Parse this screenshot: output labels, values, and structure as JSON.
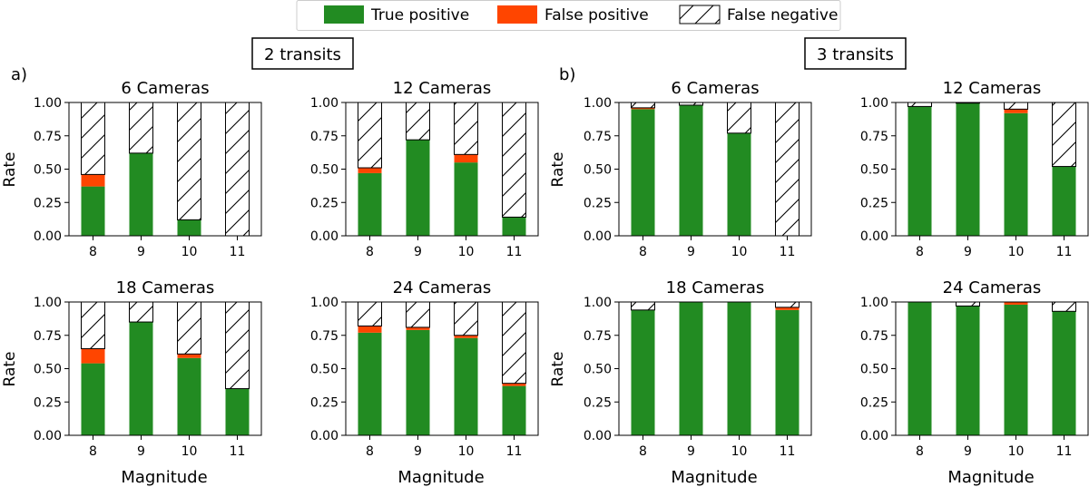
{
  "colors": {
    "tp": "#228b22",
    "fp": "#ff4500",
    "fn_fill": "#ffffff",
    "edge": "#000000"
  },
  "legend": {
    "tp_label": "True positive",
    "fp_label": "False positive",
    "fn_label": "False negative"
  },
  "groups": [
    {
      "title": "2 transits",
      "panel_label": "a)"
    },
    {
      "title": "3 transits",
      "panel_label": "b)"
    }
  ],
  "axis_text": {
    "ylabel": "Rate",
    "xlabel": "Magnitude"
  },
  "chart_data": [
    {
      "type": "bar",
      "stacked": true,
      "group": "2 transits",
      "title": "6 Cameras",
      "categories": [
        "8",
        "9",
        "10",
        "11"
      ],
      "ylim": [
        0,
        1.0
      ],
      "yticks": [
        "0.00",
        "0.25",
        "0.50",
        "0.75",
        "1.00"
      ],
      "series": [
        {
          "name": "True positive",
          "values": [
            0.37,
            0.62,
            0.12,
            0.0
          ]
        },
        {
          "name": "False positive",
          "values": [
            0.09,
            0.0,
            0.0,
            0.0
          ]
        },
        {
          "name": "False negative",
          "values": [
            0.54,
            0.38,
            0.88,
            1.0
          ]
        }
      ]
    },
    {
      "type": "bar",
      "stacked": true,
      "group": "2 transits",
      "title": "12 Cameras",
      "categories": [
        "8",
        "9",
        "10",
        "11"
      ],
      "ylim": [
        0,
        1.0
      ],
      "yticks": [
        "0.00",
        "0.25",
        "0.50",
        "0.75",
        "1.00"
      ],
      "series": [
        {
          "name": "True positive",
          "values": [
            0.47,
            0.72,
            0.55,
            0.14
          ]
        },
        {
          "name": "False positive",
          "values": [
            0.04,
            0.0,
            0.06,
            0.0
          ]
        },
        {
          "name": "False negative",
          "values": [
            0.49,
            0.28,
            0.39,
            0.86
          ]
        }
      ]
    },
    {
      "type": "bar",
      "stacked": true,
      "group": "3 transits",
      "title": "6 Cameras",
      "categories": [
        "8",
        "9",
        "10",
        "11"
      ],
      "ylim": [
        0,
        1.0
      ],
      "yticks": [
        "0.00",
        "0.25",
        "0.50",
        "0.75",
        "1.00"
      ],
      "series": [
        {
          "name": "True positive",
          "values": [
            0.95,
            0.98,
            0.77,
            0.0
          ]
        },
        {
          "name": "False positive",
          "values": [
            0.01,
            0.0,
            0.0,
            0.0
          ]
        },
        {
          "name": "False negative",
          "values": [
            0.04,
            0.02,
            0.23,
            1.0
          ]
        }
      ]
    },
    {
      "type": "bar",
      "stacked": true,
      "group": "3 transits",
      "title": "12 Cameras",
      "categories": [
        "8",
        "9",
        "10",
        "11"
      ],
      "ylim": [
        0,
        1.0
      ],
      "yticks": [
        "0.00",
        "0.25",
        "0.50",
        "0.75",
        "1.00"
      ],
      "series": [
        {
          "name": "True positive",
          "values": [
            0.97,
            0.995,
            0.92,
            0.52
          ]
        },
        {
          "name": "False positive",
          "values": [
            0.0,
            0.0,
            0.03,
            0.0
          ]
        },
        {
          "name": "False negative",
          "values": [
            0.03,
            0.005,
            0.05,
            0.48
          ]
        }
      ]
    },
    {
      "type": "bar",
      "stacked": true,
      "group": "2 transits",
      "title": "18 Cameras",
      "categories": [
        "8",
        "9",
        "10",
        "11"
      ],
      "ylim": [
        0,
        1.0
      ],
      "yticks": [
        "0.00",
        "0.25",
        "0.50",
        "0.75",
        "1.00"
      ],
      "series": [
        {
          "name": "True positive",
          "values": [
            0.54,
            0.85,
            0.58,
            0.35
          ]
        },
        {
          "name": "False positive",
          "values": [
            0.11,
            0.0,
            0.03,
            0.0
          ]
        },
        {
          "name": "False negative",
          "values": [
            0.35,
            0.15,
            0.39,
            0.65
          ]
        }
      ]
    },
    {
      "type": "bar",
      "stacked": true,
      "group": "2 transits",
      "title": "24 Cameras",
      "categories": [
        "8",
        "9",
        "10",
        "11"
      ],
      "ylim": [
        0,
        1.0
      ],
      "yticks": [
        "0.00",
        "0.25",
        "0.50",
        "0.75",
        "1.00"
      ],
      "series": [
        {
          "name": "True positive",
          "values": [
            0.77,
            0.79,
            0.73,
            0.37
          ]
        },
        {
          "name": "False positive",
          "values": [
            0.05,
            0.02,
            0.02,
            0.02
          ]
        },
        {
          "name": "False negative",
          "values": [
            0.18,
            0.19,
            0.25,
            0.61
          ]
        }
      ]
    },
    {
      "type": "bar",
      "stacked": true,
      "group": "3 transits",
      "title": "18 Cameras",
      "categories": [
        "8",
        "9",
        "10",
        "11"
      ],
      "ylim": [
        0,
        1.0
      ],
      "yticks": [
        "0.00",
        "0.25",
        "0.50",
        "0.75",
        "1.00"
      ],
      "series": [
        {
          "name": "True positive",
          "values": [
            0.94,
            1.0,
            1.0,
            0.94
          ]
        },
        {
          "name": "False positive",
          "values": [
            0.0,
            0.0,
            0.0,
            0.02
          ]
        },
        {
          "name": "False negative",
          "values": [
            0.06,
            0.0,
            0.0,
            0.04
          ]
        }
      ]
    },
    {
      "type": "bar",
      "stacked": true,
      "group": "3 transits",
      "title": "24 Cameras",
      "categories": [
        "8",
        "9",
        "10",
        "11"
      ],
      "ylim": [
        0,
        1.0
      ],
      "yticks": [
        "0.00",
        "0.25",
        "0.50",
        "0.75",
        "1.00"
      ],
      "series": [
        {
          "name": "True positive",
          "values": [
            1.0,
            0.97,
            0.98,
            0.93
          ]
        },
        {
          "name": "False positive",
          "values": [
            0.0,
            0.0,
            0.02,
            0.0
          ]
        },
        {
          "name": "False negative",
          "values": [
            0.0,
            0.03,
            0.0,
            0.07
          ]
        }
      ]
    }
  ]
}
